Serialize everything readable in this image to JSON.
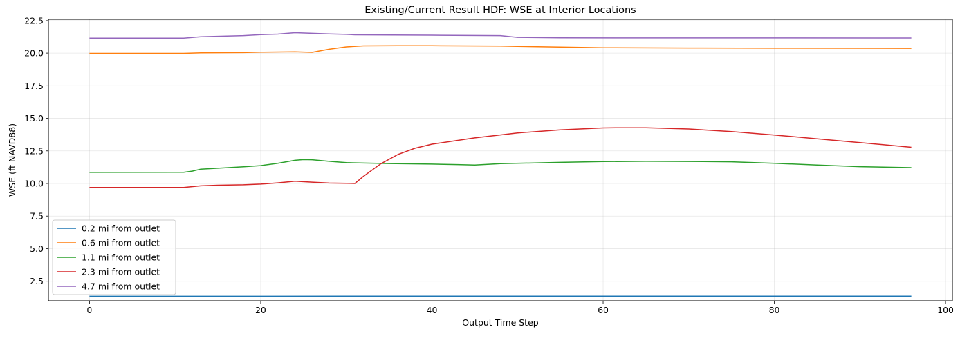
{
  "chart_data": {
    "type": "line",
    "title": "Existing/Current Result HDF: WSE at Interior Locations",
    "xlabel": "Output Time Step",
    "ylabel": "WSE (ft NAVD88)",
    "xlim": [
      -4.8,
      100.8
    ],
    "ylim": [
      1.0,
      22.6
    ],
    "xticks": [
      0,
      20,
      40,
      60,
      80,
      100
    ],
    "yticks": [
      2.5,
      5.0,
      7.5,
      10.0,
      12.5,
      15.0,
      17.5,
      20.0,
      22.5
    ],
    "grid": true,
    "legend_position": "lower-left",
    "series": [
      {
        "name": "0.2 mi from outlet",
        "color": "#1f77b4",
        "points": [
          [
            0,
            1.35
          ],
          [
            48,
            1.36
          ],
          [
            96,
            1.36
          ]
        ]
      },
      {
        "name": "0.6 mi from outlet",
        "color": "#ff7f0e",
        "points": [
          [
            0,
            19.98
          ],
          [
            11,
            19.98
          ],
          [
            13,
            20.02
          ],
          [
            18,
            20.04
          ],
          [
            20,
            20.07
          ],
          [
            24,
            20.1
          ],
          [
            26,
            20.06
          ],
          [
            28,
            20.3
          ],
          [
            30,
            20.48
          ],
          [
            32,
            20.56
          ],
          [
            36,
            20.58
          ],
          [
            40,
            20.57
          ],
          [
            48,
            20.55
          ],
          [
            50,
            20.52
          ],
          [
            60,
            20.42
          ],
          [
            70,
            20.4
          ],
          [
            80,
            20.38
          ],
          [
            96,
            20.37
          ]
        ]
      },
      {
        "name": "1.1 mi from outlet",
        "color": "#2ca02c",
        "points": [
          [
            0,
            10.85
          ],
          [
            11,
            10.86
          ],
          [
            12,
            10.95
          ],
          [
            13,
            11.1
          ],
          [
            15,
            11.17
          ],
          [
            18,
            11.28
          ],
          [
            20,
            11.37
          ],
          [
            22,
            11.55
          ],
          [
            24,
            11.78
          ],
          [
            25,
            11.83
          ],
          [
            26,
            11.82
          ],
          [
            28,
            11.7
          ],
          [
            30,
            11.6
          ],
          [
            35,
            11.53
          ],
          [
            40,
            11.49
          ],
          [
            43,
            11.45
          ],
          [
            45,
            11.42
          ],
          [
            48,
            11.52
          ],
          [
            55,
            11.62
          ],
          [
            60,
            11.68
          ],
          [
            65,
            11.7
          ],
          [
            70,
            11.69
          ],
          [
            75,
            11.66
          ],
          [
            80,
            11.55
          ],
          [
            85,
            11.42
          ],
          [
            90,
            11.29
          ],
          [
            96,
            11.22
          ]
        ]
      },
      {
        "name": "2.3 mi from outlet",
        "color": "#d62728",
        "points": [
          [
            0,
            9.7
          ],
          [
            11,
            9.7
          ],
          [
            13,
            9.82
          ],
          [
            15,
            9.87
          ],
          [
            18,
            9.9
          ],
          [
            20,
            9.95
          ],
          [
            22,
            10.05
          ],
          [
            24,
            10.17
          ],
          [
            26,
            10.1
          ],
          [
            28,
            10.03
          ],
          [
            31,
            10.0
          ],
          [
            32,
            10.55
          ],
          [
            34,
            11.5
          ],
          [
            36,
            12.22
          ],
          [
            38,
            12.7
          ],
          [
            40,
            13.02
          ],
          [
            45,
            13.5
          ],
          [
            50,
            13.88
          ],
          [
            55,
            14.12
          ],
          [
            60,
            14.26
          ],
          [
            62,
            14.28
          ],
          [
            65,
            14.27
          ],
          [
            70,
            14.18
          ],
          [
            75,
            13.98
          ],
          [
            80,
            13.72
          ],
          [
            85,
            13.43
          ],
          [
            90,
            13.14
          ],
          [
            96,
            12.78
          ]
        ]
      },
      {
        "name": "4.7 mi from outlet",
        "color": "#9467bd",
        "points": [
          [
            0,
            21.16
          ],
          [
            11,
            21.16
          ],
          [
            13,
            21.26
          ],
          [
            18,
            21.35
          ],
          [
            20,
            21.42
          ],
          [
            22,
            21.46
          ],
          [
            24,
            21.57
          ],
          [
            26,
            21.52
          ],
          [
            28,
            21.47
          ],
          [
            30,
            21.44
          ],
          [
            31,
            21.41
          ],
          [
            40,
            21.38
          ],
          [
            48,
            21.35
          ],
          [
            50,
            21.22
          ],
          [
            55,
            21.18
          ],
          [
            96,
            21.17
          ]
        ]
      }
    ]
  }
}
